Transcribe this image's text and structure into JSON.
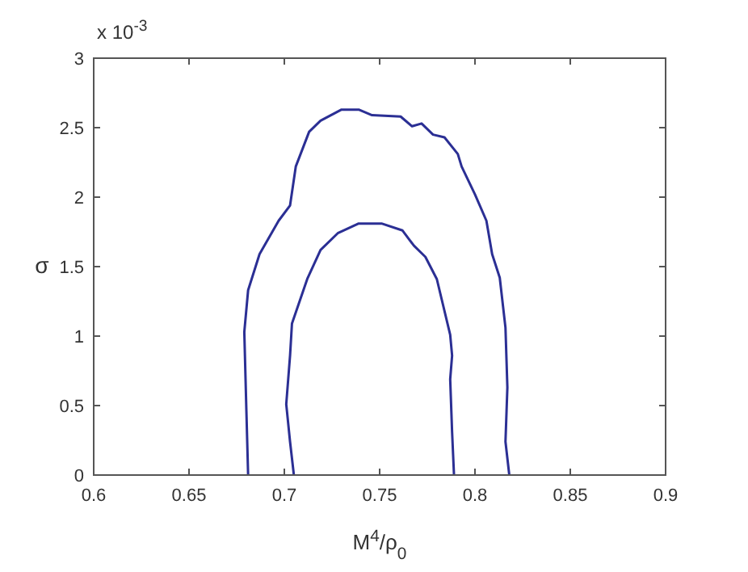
{
  "chart_data": {
    "type": "line",
    "xlabel": "M$^{4}$/ρ$_{0}$",
    "ylabel": "σ",
    "annotations": [
      "x 10$^{-3}$"
    ],
    "xlim": [
      0.6,
      0.9
    ],
    "xticks": [
      0.6,
      0.65,
      0.7,
      0.75,
      0.8,
      0.85,
      0.9
    ],
    "ylim": [
      0,
      3
    ],
    "yticks": [
      0,
      0.5,
      1,
      1.5,
      2,
      2.5,
      3
    ],
    "grid": false,
    "marker": "none",
    "line_style": "solid",
    "series": [
      {
        "color": "#2b2f94",
        "x": [
          0.681,
          0.68,
          0.679,
          0.681,
          0.687,
          0.697,
          0.703,
          0.706,
          0.713,
          0.719,
          0.73,
          0.739,
          0.746,
          0.761,
          0.767,
          0.772,
          0.778,
          0.784,
          0.791,
          0.793,
          0.8,
          0.806,
          0.809,
          0.813,
          0.816,
          0.817,
          0.816,
          0.818
        ],
        "values": [
          0,
          0.51,
          1.03,
          1.33,
          1.59,
          1.83,
          1.94,
          2.22,
          2.47,
          2.55,
          2.63,
          2.63,
          2.59,
          2.58,
          2.51,
          2.53,
          2.45,
          2.43,
          2.31,
          2.22,
          2.02,
          1.83,
          1.59,
          1.42,
          1.06,
          0.63,
          0.24,
          0
        ]
      },
      {
        "color": "#2b2f94",
        "x": [
          0.705,
          0.703,
          0.701,
          0.703,
          0.704,
          0.712,
          0.719,
          0.728,
          0.739,
          0.751,
          0.762,
          0.768,
          0.774,
          0.78,
          0.787,
          0.788,
          0.787,
          0.788,
          0.789
        ],
        "values": [
          0,
          0.24,
          0.51,
          0.86,
          1.09,
          1.41,
          1.62,
          1.74,
          1.81,
          1.81,
          1.76,
          1.65,
          1.57,
          1.41,
          1.01,
          0.86,
          0.69,
          0.31,
          0
        ]
      }
    ]
  }
}
